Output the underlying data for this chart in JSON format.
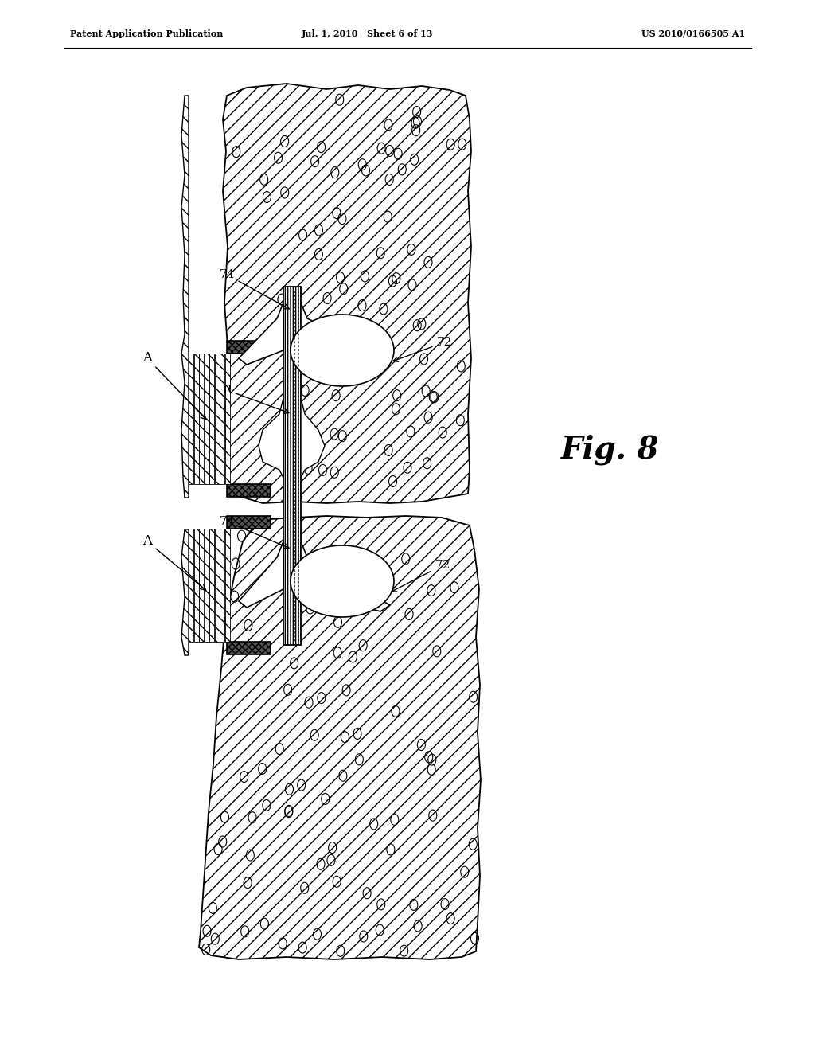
{
  "header_left": "Patent Application Publication",
  "header_center": "Jul. 1, 2010   Sheet 6 of 13",
  "header_right": "US 2010/0166505 A1",
  "fig_label": "Fig. 8",
  "bg": "#ffffff",
  "fg": "#000000",
  "label_A": "A",
  "label_74": "74",
  "label_72": "72",
  "label_R": "R"
}
